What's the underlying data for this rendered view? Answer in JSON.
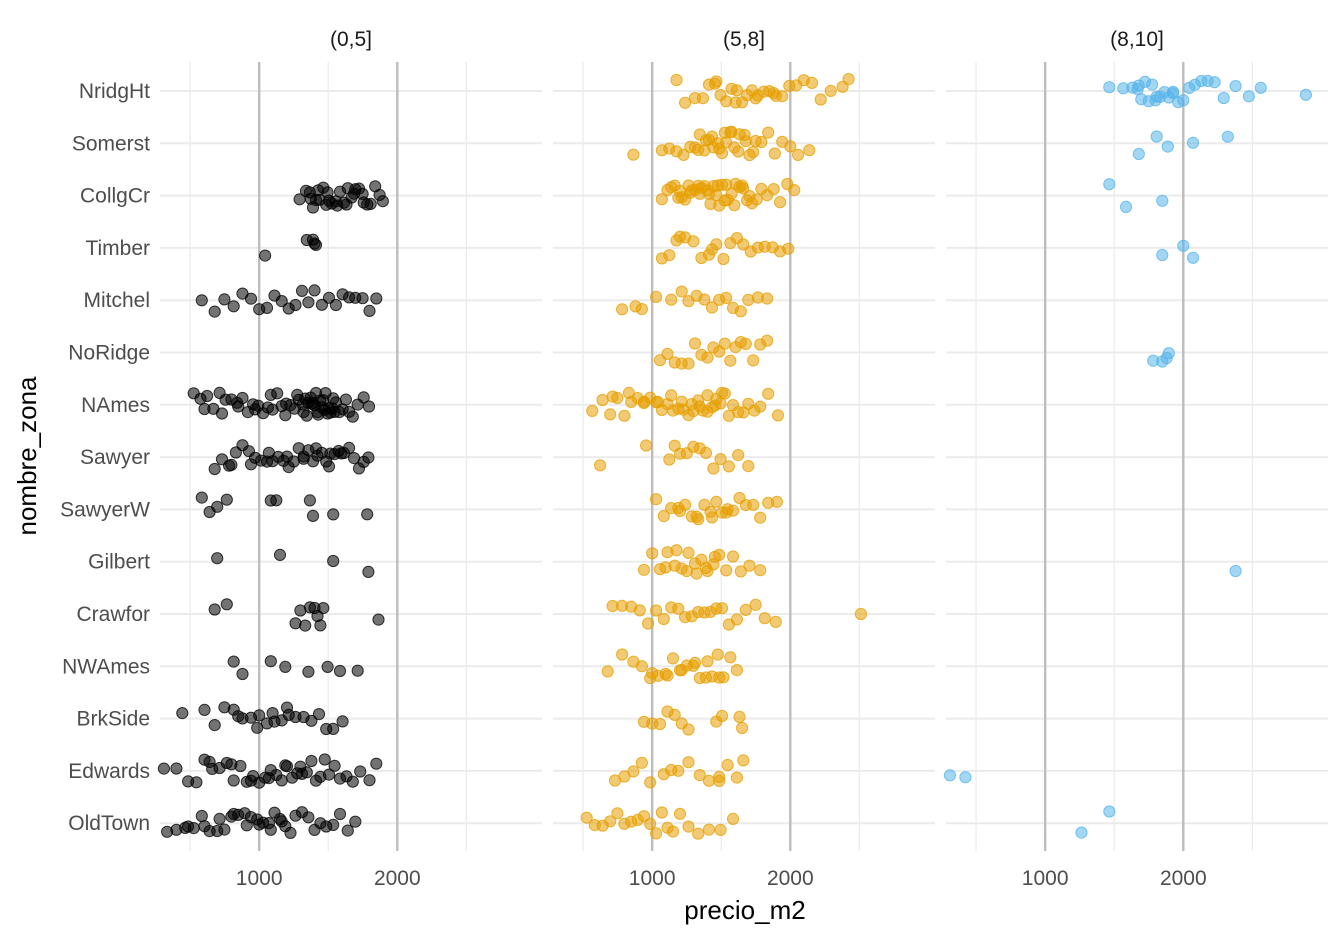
{
  "chart_data": {
    "type": "scatter",
    "xlabel": "precio_m2",
    "ylabel": "nombre_zona",
    "x_scale": "log",
    "xlim": [
      608,
      4134
    ],
    "x_major_ticks": [
      1000,
      2000
    ],
    "x_major_labels": [
      "1000",
      "2000"
    ],
    "x_minor_ticks": [
      707,
      1414,
      2828
    ],
    "grid": true,
    "legend": "none",
    "categories": [
      "NridgHt",
      "Somerst",
      "CollgCr",
      "Timber",
      "Mitchel",
      "NoRidge",
      "NAmes",
      "Sawyer",
      "SawyerW",
      "Gilbert",
      "Crawfor",
      "NWAmes",
      "BrkSide",
      "Edwards",
      "OldTown"
    ],
    "facets": [
      {
        "label": "(0,5]",
        "color": "#000000",
        "points": {
          "CollgCr": [
            1225,
            1265,
            1295,
            1310,
            1330,
            1355,
            1380,
            1400,
            1420,
            1440,
            1470,
            1500,
            1530,
            1560,
            1590,
            1620,
            1650,
            1690,
            1720,
            1750,
            1790,
            1830,
            1860,
            1290,
            1345,
            1410,
            1480,
            1550,
            1610,
            1680
          ],
          "Timber": [
            1030,
            1270,
            1310,
            1320,
            1330
          ],
          "Mitchel": [
            750,
            800,
            840,
            880,
            920,
            960,
            1000,
            1040,
            1080,
            1120,
            1160,
            1200,
            1240,
            1280,
            1320,
            1370,
            1420,
            1470,
            1520,
            1570,
            1620,
            1680,
            1740,
            1800
          ],
          "NAmes": [
            720,
            745,
            770,
            795,
            820,
            845,
            870,
            895,
            920,
            945,
            970,
            995,
            1020,
            1045,
            1070,
            1095,
            1120,
            1145,
            1170,
            1195,
            1220,
            1245,
            1270,
            1295,
            1320,
            1345,
            1370,
            1395,
            1420,
            1445,
            1470,
            1495,
            1520,
            1545,
            1570,
            1600,
            1640,
            1690,
            1735,
            760,
            830,
            900,
            980,
            1060,
            1140,
            1210,
            1260,
            1300,
            1340,
            1380,
            1410,
            1450,
            1250,
            1280,
            1310,
            1330,
            1360,
            1390,
            1430,
            1460
          ],
          "Sawyer": [
            800,
            830,
            860,
            890,
            920,
            950,
            980,
            1010,
            1040,
            1070,
            1100,
            1130,
            1160,
            1190,
            1220,
            1250,
            1280,
            1310,
            1340,
            1370,
            1400,
            1430,
            1460,
            1490,
            1530,
            1570,
            1610,
            1650,
            1690,
            1730,
            870,
            960,
            1050,
            1150,
            1250,
            1330,
            1420,
            1510
          ],
          "SawyerW": [
            750,
            780,
            810,
            850,
            1060,
            1090,
            1290,
            1310,
            1450,
            1720
          ],
          "Gilbert": [
            810,
            1110,
            1450,
            1730
          ],
          "Crawfor": [
            800,
            850,
            1200,
            1230,
            1260,
            1290,
            1320,
            1340,
            1360,
            1380,
            1820
          ],
          "NWAmes": [
            880,
            920,
            1060,
            1140,
            1280,
            1410,
            1500,
            1640
          ],
          "BrkSide": [
            680,
            760,
            800,
            840,
            880,
            920,
            960,
            1000,
            1040,
            1080,
            1120,
            1160,
            1200,
            1250,
            1300,
            1350,
            1400,
            1450,
            1520,
            900,
            990,
            1070,
            1150
          ],
          "Edwards": [
            620,
            660,
            700,
            730,
            760,
            790,
            820,
            850,
            880,
            910,
            940,
            970,
            1000,
            1030,
            1060,
            1090,
            1120,
            1150,
            1180,
            1210,
            1240,
            1270,
            1300,
            1330,
            1360,
            1390,
            1420,
            1460,
            1500,
            1550,
            1600,
            1660,
            1740,
            1800,
            780,
            870,
            960,
            1050,
            1140,
            1230
          ],
          "OldTown": [
            630,
            660,
            690,
            720,
            750,
            780,
            810,
            840,
            870,
            900,
            930,
            960,
            990,
            1020,
            1050,
            1080,
            1110,
            1140,
            1170,
            1200,
            1240,
            1280,
            1320,
            1360,
            1400,
            1450,
            1500,
            1560,
            1620,
            700,
            760,
            820,
            880,
            940,
            1000,
            1060,
            1120
          ]
        }
      },
      {
        "label": "(5,8]",
        "color": "#E69F00",
        "points": {
          "NridgHt": [
            1130,
            1180,
            1240,
            1290,
            1330,
            1370,
            1410,
            1450,
            1490,
            1530,
            1570,
            1610,
            1650,
            1700,
            1750,
            1800,
            1860,
            1920,
            1990,
            2060,
            2140,
            2230,
            2330,
            2450,
            2600,
            2680,
            1380,
            1520,
            1680,
            1840
          ],
          "Somerst": [
            910,
            1050,
            1090,
            1130,
            1170,
            1210,
            1240,
            1270,
            1300,
            1330,
            1360,
            1390,
            1420,
            1450,
            1480,
            1510,
            1550,
            1590,
            1630,
            1680,
            1730,
            1790,
            1850,
            1920,
            2000,
            2080,
            2200,
            1260,
            1310,
            1350,
            1400,
            1440,
            1490,
            1540,
            1600,
            1660
          ],
          "CollgCr": [
            1050,
            1080,
            1100,
            1120,
            1140,
            1160,
            1180,
            1200,
            1220,
            1240,
            1260,
            1280,
            1300,
            1320,
            1340,
            1360,
            1380,
            1400,
            1420,
            1440,
            1460,
            1490,
            1520,
            1550,
            1580,
            1610,
            1650,
            1690,
            1730,
            1780,
            1840,
            1900,
            1970,
            2040,
            1150,
            1210,
            1270,
            1330,
            1390,
            1450,
            1510,
            1570,
            1630
          ],
          "Timber": [
            1050,
            1090,
            1130,
            1180,
            1230,
            1280,
            1330,
            1380,
            1430,
            1480,
            1530,
            1580,
            1640,
            1700,
            1760,
            1830,
            1900,
            1980,
            1150,
            1350
          ],
          "Mitchel": [
            860,
            920,
            950,
            1020,
            1100,
            1160,
            1200,
            1250,
            1300,
            1350,
            1400,
            1450,
            1500,
            1560,
            1620,
            1700,
            1780
          ],
          "NoRidge": [
            1040,
            1080,
            1120,
            1160,
            1200,
            1240,
            1280,
            1320,
            1360,
            1400,
            1440,
            1480,
            1520,
            1560,
            1600,
            1660,
            1720,
            1780
          ],
          "NAmes": [
            740,
            780,
            810,
            840,
            870,
            900,
            930,
            960,
            990,
            1020,
            1050,
            1080,
            1110,
            1140,
            1170,
            1200,
            1230,
            1260,
            1290,
            1320,
            1350,
            1380,
            1410,
            1440,
            1470,
            1500,
            1540,
            1580,
            1620,
            1670,
            1720,
            1790,
            1880,
            820,
            890,
            960,
            1030,
            1100,
            1160,
            1220,
            1270,
            1320,
            1370,
            1420
          ],
          "Sawyer": [
            770,
            970,
            1090,
            1120,
            1150,
            1190,
            1230,
            1270,
            1310,
            1360,
            1410,
            1470,
            1540,
            1620
          ],
          "SawyerW": [
            1020,
            1060,
            1100,
            1140,
            1180,
            1220,
            1260,
            1300,
            1340,
            1380,
            1420,
            1460,
            1500,
            1550,
            1600,
            1660,
            1720,
            1790,
            1870,
            1150,
            1250,
            1350,
            1450
          ],
          "Gilbert": [
            960,
            1000,
            1040,
            1080,
            1120,
            1160,
            1200,
            1240,
            1280,
            1320,
            1360,
            1400,
            1450,
            1500,
            1560,
            1630,
            1720,
            1070,
            1130,
            1190,
            1250,
            1310,
            1370
          ],
          "Crawfor": [
            820,
            860,
            900,
            940,
            980,
            1020,
            1060,
            1100,
            1140,
            1180,
            1220,
            1260,
            1300,
            1340,
            1380,
            1420,
            1470,
            1530,
            1600,
            1680,
            1760,
            1860,
            2850
          ],
          "NWAmes": [
            800,
            860,
            910,
            950,
            990,
            1030,
            1070,
            1110,
            1150,
            1190,
            1230,
            1270,
            1310,
            1350,
            1390,
            1430,
            1480,
            1530,
            1000,
            1080,
            1160,
            1240,
            1320,
            1400
          ],
          "BrkSide": [
            960,
            1000,
            1040,
            1080,
            1120,
            1160,
            1200,
            1380,
            1420,
            1550,
            1570
          ],
          "Edwards": [
            830,
            870,
            910,
            950,
            990,
            1060,
            1100,
            1140,
            1200,
            1270,
            1330,
            1400,
            1460,
            1530,
            1400,
            1580
          ],
          "OldTown": [
            720,
            750,
            780,
            810,
            840,
            870,
            900,
            930,
            960,
            990,
            1020,
            1050,
            1080,
            1110,
            1150,
            1200,
            1260,
            1330,
            1410,
            1500
          ]
        }
      },
      {
        "label": "(8,10]",
        "color": "#56B4E9",
        "points": {
          "NridgHt": [
            1380,
            1480,
            1550,
            1590,
            1620,
            1650,
            1680,
            1710,
            1740,
            1780,
            1820,
            1860,
            1900,
            1950,
            2000,
            2060,
            2120,
            2190,
            2260,
            2340,
            2450,
            2600,
            2780,
            2950,
            3700,
            1600,
            1750,
            1900
          ],
          "Somerst": [
            1600,
            1750,
            1850,
            2100,
            2500
          ],
          "CollgCr": [
            1380,
            1500,
            1800
          ],
          "Timber": [
            1800,
            2000,
            2100
          ],
          "NoRidge": [
            1720,
            1800,
            1840,
            1860
          ],
          "Gilbert": [
            2600
          ],
          "Edwards": [
            620,
            670
          ],
          "OldTown": [
            1200,
            1380
          ]
        }
      }
    ]
  }
}
